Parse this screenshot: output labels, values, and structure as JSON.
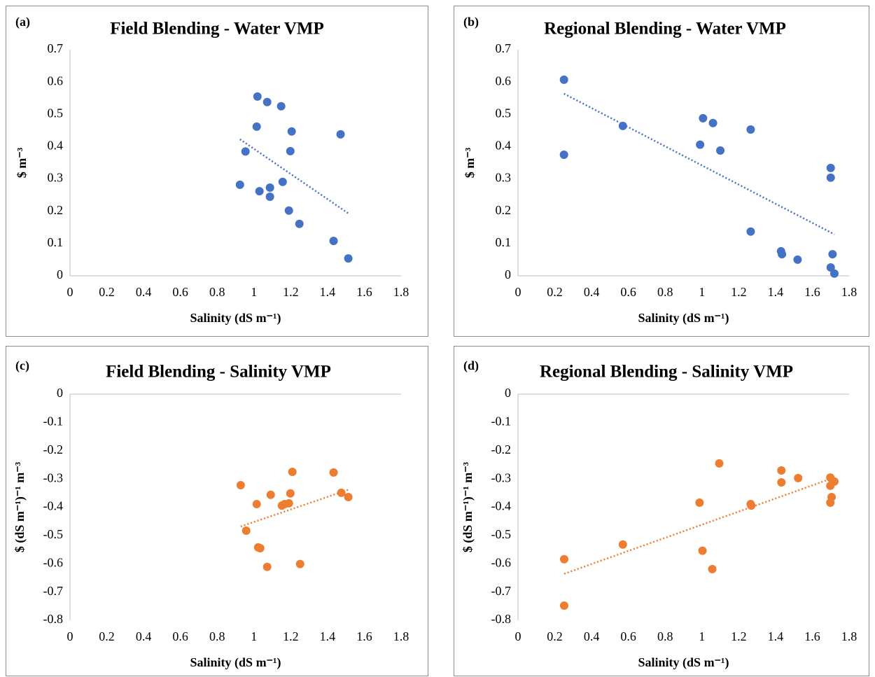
{
  "chart_data": [
    {
      "type": "scatter",
      "panel_label": "(a)",
      "title": "Field Blending - Water VMP",
      "x_label": "Salinity (dS m⁻¹)",
      "y_label": "$ m⁻³",
      "color": "#4472c4",
      "trendline": "linear",
      "x": [
        1.019,
        1.072,
        1.148,
        1.015,
        1.205,
        1.471,
        0.954,
        1.198,
        0.924,
        1.03,
        1.087,
        1.156,
        1.087,
        1.19,
        1.247,
        1.433,
        1.513
      ],
      "values": [
        0.555,
        0.538,
        0.525,
        0.462,
        0.447,
        0.438,
        0.385,
        0.386,
        0.282,
        0.262,
        0.273,
        0.291,
        0.245,
        0.202,
        0.161,
        0.108,
        0.054
      ],
      "xlim": [
        0,
        1.8
      ],
      "ylim": [
        0,
        0.7
      ],
      "xticks": [
        0,
        0.2,
        0.4,
        0.6,
        0.8,
        1,
        1.2,
        1.4,
        1.6,
        1.8
      ],
      "yticks": [
        0,
        0.1,
        0.2,
        0.3,
        0.4,
        0.5,
        0.6,
        0.7
      ]
    },
    {
      "type": "scatter",
      "panel_label": "(b)",
      "title": "Regional Blending - Water VMP",
      "x_label": "Salinity (dS m⁻¹)",
      "y_label": "$ m⁻³",
      "color": "#4472c4",
      "trendline": "linear",
      "x": [
        0.25,
        0.25,
        0.57,
        1.006,
        1.06,
        0.99,
        1.1,
        1.265,
        1.265,
        1.43,
        1.435,
        1.52,
        1.7,
        1.7,
        1.71,
        1.7,
        1.72
      ],
      "values": [
        0.607,
        0.375,
        0.464,
        0.488,
        0.473,
        0.406,
        0.388,
        0.453,
        0.137,
        0.076,
        0.067,
        0.05,
        0.334,
        0.304,
        0.067,
        0.026,
        0.007
      ],
      "xlim": [
        0,
        1.8
      ],
      "ylim": [
        0,
        0.7
      ],
      "xticks": [
        0,
        0.2,
        0.4,
        0.6,
        0.8,
        1,
        1.2,
        1.4,
        1.6,
        1.8
      ],
      "yticks": [
        0,
        0.1,
        0.2,
        0.3,
        0.4,
        0.5,
        0.6,
        0.7
      ]
    },
    {
      "type": "scatter",
      "panel_label": "(c)",
      "title": "Field Blending - Salinity VMP",
      "x_label": "Salinity (dS m⁻¹)",
      "y_label": "$ (dS m⁻¹)⁻¹ m⁻³",
      "color": "#ed7d31",
      "trendline": "linear",
      "x": [
        0.928,
        1.015,
        0.958,
        1.023,
        1.034,
        1.072,
        1.091,
        1.152,
        1.167,
        1.198,
        1.19,
        1.209,
        1.251,
        1.433,
        1.475,
        1.513
      ],
      "values": [
        -0.322,
        -0.389,
        -0.483,
        -0.542,
        -0.545,
        -0.611,
        -0.356,
        -0.394,
        -0.389,
        -0.351,
        -0.386,
        -0.275,
        -0.601,
        -0.277,
        -0.349,
        -0.364
      ],
      "xlim": [
        0,
        1.8
      ],
      "ylim": [
        -0.8,
        0
      ],
      "xticks": [
        0,
        0.2,
        0.4,
        0.6,
        0.8,
        1,
        1.2,
        1.4,
        1.6,
        1.8
      ],
      "yticks": [
        0,
        -0.1,
        -0.2,
        -0.3,
        -0.4,
        -0.5,
        -0.6,
        -0.7,
        -0.8
      ]
    },
    {
      "type": "scatter",
      "panel_label": "(d)",
      "title": "Regional Blending - Salinity VMP",
      "x_label": "Salinity (dS m⁻¹)",
      "y_label": "$ (dS m⁻¹)⁻¹ m⁻³",
      "color": "#ed7d31",
      "trendline": "linear",
      "x": [
        0.251,
        0.251,
        0.57,
        0.987,
        1.003,
        1.056,
        1.094,
        1.265,
        1.268,
        1.432,
        1.432,
        1.523,
        1.698,
        1.698,
        1.72,
        1.705,
        1.698
      ],
      "values": [
        -0.584,
        -0.748,
        -0.532,
        -0.384,
        -0.554,
        -0.619,
        -0.245,
        -0.389,
        -0.394,
        -0.27,
        -0.312,
        -0.297,
        -0.295,
        -0.324,
        -0.309,
        -0.364,
        -0.384
      ],
      "xlim": [
        0,
        1.8
      ],
      "ylim": [
        -0.8,
        0
      ],
      "xticks": [
        0,
        0.2,
        0.4,
        0.6,
        0.8,
        1,
        1.2,
        1.4,
        1.6,
        1.8
      ],
      "yticks": [
        0,
        -0.1,
        -0.2,
        -0.3,
        -0.4,
        -0.5,
        -0.6,
        -0.7,
        -0.8
      ]
    }
  ]
}
